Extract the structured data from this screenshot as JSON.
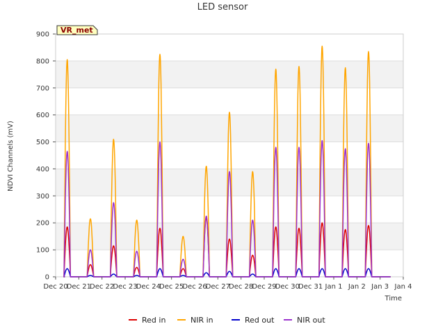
{
  "chart_data": {
    "type": "line",
    "title": "LED sensor",
    "xlabel": "Time",
    "ylabel": "NDVI Channels (mV)",
    "badge": "VR_met",
    "xlim": [
      0,
      15
    ],
    "ylim": [
      0,
      900
    ],
    "yticks": [
      0,
      100,
      200,
      300,
      400,
      500,
      600,
      700,
      800,
      900
    ],
    "xticks": [
      {
        "x": 0,
        "label": "Dec 20"
      },
      {
        "x": 1,
        "label": "Dec 21"
      },
      {
        "x": 2,
        "label": "Dec 22"
      },
      {
        "x": 3,
        "label": "Dec 23"
      },
      {
        "x": 4,
        "label": "Dec 24"
      },
      {
        "x": 5,
        "label": "Dec 25"
      },
      {
        "x": 6,
        "label": "Dec 26"
      },
      {
        "x": 7,
        "label": "Dec 27"
      },
      {
        "x": 8,
        "label": "Dec 28"
      },
      {
        "x": 9,
        "label": "Dec 29"
      },
      {
        "x": 10,
        "label": "Dec 30"
      },
      {
        "x": 11,
        "label": "Dec 31"
      },
      {
        "x": 12,
        "label": "Jan 1"
      },
      {
        "x": 13,
        "label": "Jan 2"
      },
      {
        "x": 14,
        "label": "Jan 3"
      },
      {
        "x": 15,
        "label": "Jan 4"
      }
    ],
    "x_start": 0.4,
    "x_end": 14.45,
    "day_center": 0.5,
    "day_width": 0.28,
    "series": [
      {
        "name": "Red in",
        "color": "#dd0000",
        "peaks": [
          185,
          45,
          115,
          35,
          180,
          30,
          220,
          140,
          80,
          185,
          180,
          200,
          175,
          190
        ]
      },
      {
        "name": "NIR in",
        "color": "#ffa500",
        "peaks": [
          805,
          215,
          510,
          210,
          825,
          150,
          410,
          610,
          390,
          770,
          780,
          855,
          775,
          835
        ]
      },
      {
        "name": "Red out",
        "color": "#0000cc",
        "peaks": [
          30,
          5,
          10,
          5,
          30,
          5,
          15,
          20,
          10,
          30,
          30,
          30,
          30,
          30
        ]
      },
      {
        "name": "NIR out",
        "color": "#9a32cd",
        "peaks": [
          465,
          100,
          275,
          95,
          500,
          65,
          225,
          390,
          210,
          480,
          480,
          505,
          475,
          495
        ]
      }
    ],
    "legend_position": "bottom",
    "grid": true
  }
}
